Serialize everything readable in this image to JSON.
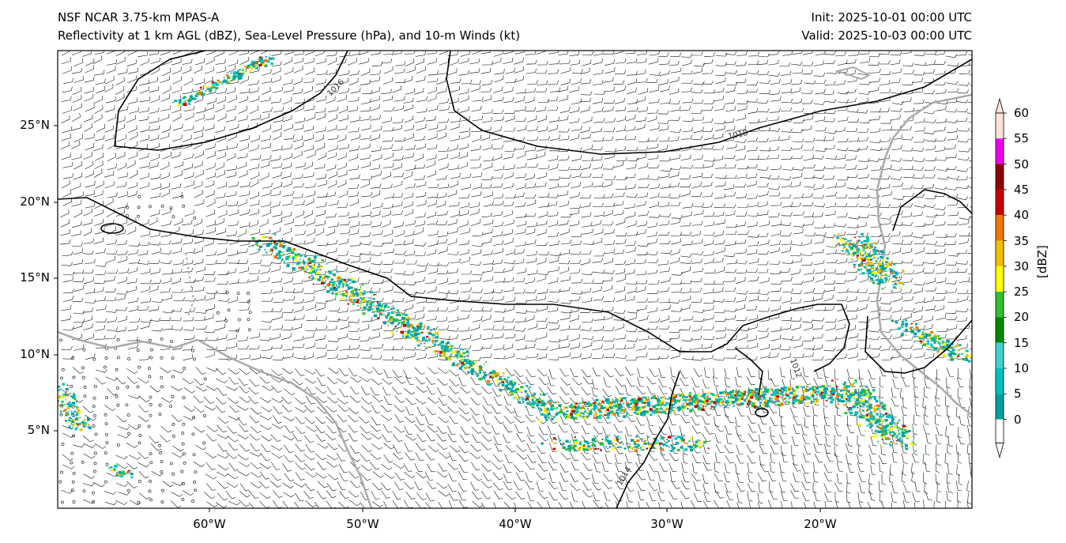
{
  "header": {
    "model": "NSF NCAR 3.75-km MPAS-A",
    "fields": "Reflectivity at 1 km AGL (dBZ), Sea-Level Pressure (hPa), and 10-m Winds (kt)",
    "init": "Init: 2025-10-01 00:00 UTC",
    "valid": "Valid: 2025-10-03 00:00 UTC"
  },
  "axes": {
    "lat_labels": [
      "25°N",
      "20°N",
      "15°N",
      "10°N",
      "5°N"
    ],
    "lon_labels": [
      "60°W",
      "50°W",
      "40°W",
      "30°W",
      "20°W"
    ]
  },
  "isobar_labels": [
    "1016",
    "1018",
    "1012",
    "1014"
  ],
  "colorbar": {
    "units": "[dBZ]",
    "ticks": [
      "60",
      "55",
      "50",
      "45",
      "40",
      "35",
      "30",
      "25",
      "20",
      "15",
      "10",
      "5",
      "0"
    ],
    "colors": [
      "#fbe4dc",
      "#ee00ee",
      "#900000",
      "#c80000",
      "#f07800",
      "#f0c000",
      "#ffff00",
      "#30c030",
      "#008800",
      "#40d0d0",
      "#00c0c0",
      "#00a0a0",
      "#008080"
    ]
  }
}
